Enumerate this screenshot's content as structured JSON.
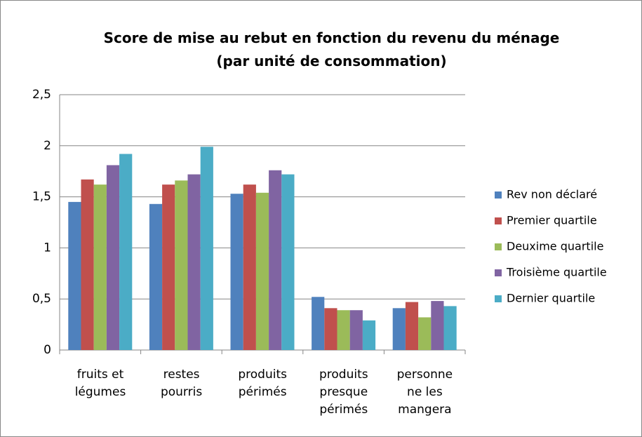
{
  "chart_data": {
    "type": "bar",
    "title": "Score de mise au rebut en fonction du revenu du ménage\n(par unité de consommation)",
    "categories": [
      "fruits et\nlégumes",
      "restes\npourris",
      "produits\npérimés",
      "produits\npresque\npérimés",
      "personne\nne les\nmangera"
    ],
    "series": [
      {
        "name": "Rev non déclaré",
        "color": "#4f81bd",
        "values": [
          1.45,
          1.43,
          1.53,
          0.52,
          0.41
        ]
      },
      {
        "name": "Premier quartile",
        "color": "#c0504d",
        "values": [
          1.67,
          1.62,
          1.62,
          0.41,
          0.47
        ]
      },
      {
        "name": "Deuxime quartile",
        "color": "#9bbb59",
        "values": [
          1.62,
          1.66,
          1.54,
          0.39,
          0.32
        ]
      },
      {
        "name": "Troisième quartile",
        "color": "#8064a2",
        "values": [
          1.81,
          1.72,
          1.76,
          0.39,
          0.48
        ]
      },
      {
        "name": "Dernier quartile",
        "color": "#4bacc6",
        "values": [
          1.92,
          1.99,
          1.72,
          0.29,
          0.43
        ]
      }
    ],
    "ylim": [
      0,
      2.5
    ],
    "yticks": [
      0,
      {
        "value": 0.5,
        "label": "0,5"
      },
      1,
      {
        "value": 1.5,
        "label": "1,5"
      },
      2,
      {
        "value": 2.5,
        "label": "2,5"
      }
    ],
    "grid": true,
    "legend": "right"
  }
}
